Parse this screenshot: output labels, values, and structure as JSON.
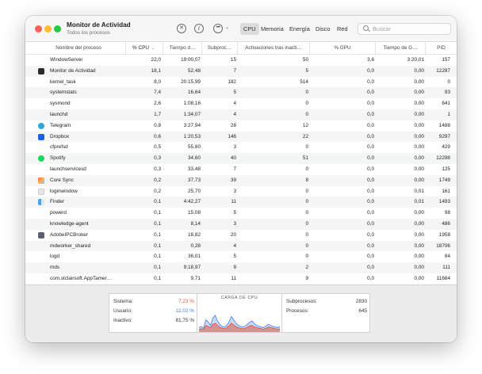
{
  "window": {
    "title": "Monitor de Actividad",
    "subtitle": "Todos los procesos"
  },
  "toolbar": {
    "stop_icon": "x-circle-icon",
    "info_icon": "info-icon",
    "more_icon": "ellipsis-icon",
    "tabs": [
      {
        "label": "CPU",
        "active": true
      },
      {
        "label": "Memoria",
        "active": false
      },
      {
        "label": "Energía",
        "active": false
      },
      {
        "label": "Disco",
        "active": false
      },
      {
        "label": "Red",
        "active": false
      }
    ],
    "search_placeholder": "Buscar"
  },
  "columns": {
    "name": "Nombre del proceso",
    "cpu": "% CPU",
    "cpu_time": "Tiempo d…",
    "threads": "Subproc…",
    "wakeups": "Activaciones tras inacti…",
    "gpu": "% GPU",
    "gpu_time": "Tiempo de G…",
    "pid": "PID"
  },
  "processes": [
    {
      "name": "WindowServer",
      "icon": "none",
      "cpu": "22,0",
      "time": "19:00,07",
      "threads": "15",
      "wake": "50",
      "gpu": "3,6",
      "gtime": "3:20,01",
      "pid": "157"
    },
    {
      "name": "Monitor de Actividad",
      "icon": "activity-monitor-icon",
      "cpu": "18,1",
      "time": "52,48",
      "threads": "7",
      "wake": "5",
      "gpu": "0,0",
      "gtime": "0,00",
      "pid": "12287"
    },
    {
      "name": "kernel_task",
      "icon": "none",
      "cpu": "8,0",
      "time": "20:15,99",
      "threads": "182",
      "wake": "514",
      "gpu": "0,0",
      "gtime": "0,00",
      "pid": "0"
    },
    {
      "name": "systemstats",
      "icon": "none",
      "cpu": "7,4",
      "time": "16,64",
      "threads": "5",
      "wake": "0",
      "gpu": "0,0",
      "gtime": "0,00",
      "pid": "93"
    },
    {
      "name": "sysmond",
      "icon": "none",
      "cpu": "2,6",
      "time": "1:08,16",
      "threads": "4",
      "wake": "0",
      "gpu": "0,0",
      "gtime": "0,00",
      "pid": "641"
    },
    {
      "name": "launchd",
      "icon": "none",
      "cpu": "1,7",
      "time": "1:34,07",
      "threads": "4",
      "wake": "0",
      "gpu": "0,0",
      "gtime": "0,00",
      "pid": "1"
    },
    {
      "name": "Telegram",
      "icon": "telegram-icon",
      "cpu": "0,8",
      "time": "3:27,94",
      "threads": "28",
      "wake": "12",
      "gpu": "0,0",
      "gtime": "0,00",
      "pid": "1488"
    },
    {
      "name": "Dropbox",
      "icon": "dropbox-icon",
      "cpu": "0,6",
      "time": "1:20,53",
      "threads": "146",
      "wake": "22",
      "gpu": "0,0",
      "gtime": "0,00",
      "pid": "9297"
    },
    {
      "name": "cfprefsd",
      "icon": "none",
      "cpu": "0,5",
      "time": "55,60",
      "threads": "3",
      "wake": "0",
      "gpu": "0,0",
      "gtime": "0,00",
      "pid": "429"
    },
    {
      "name": "Spotify",
      "icon": "spotify-icon",
      "cpu": "0,3",
      "time": "34,60",
      "threads": "40",
      "wake": "51",
      "gpu": "0,0",
      "gtime": "0,00",
      "pid": "12298"
    },
    {
      "name": "launchservicesd",
      "icon": "none",
      "cpu": "0,3",
      "time": "33,48",
      "threads": "7",
      "wake": "0",
      "gpu": "0,0",
      "gtime": "0,00",
      "pid": "125"
    },
    {
      "name": "Core Sync",
      "icon": "core-sync-icon",
      "cpu": "0,2",
      "time": "37,73",
      "threads": "39",
      "wake": "8",
      "gpu": "0,0",
      "gtime": "0,00",
      "pid": "1749"
    },
    {
      "name": "loginwindow",
      "icon": "loginwindow-icon",
      "cpu": "0,2",
      "time": "25,70",
      "threads": "3",
      "wake": "0",
      "gpu": "0,0",
      "gtime": "0,01",
      "pid": "161"
    },
    {
      "name": "Finder",
      "icon": "finder-icon",
      "cpu": "0,1",
      "time": "4:42,27",
      "threads": "11",
      "wake": "0",
      "gpu": "0,0",
      "gtime": "0,01",
      "pid": "1493"
    },
    {
      "name": "powerd",
      "icon": "none",
      "cpu": "0,1",
      "time": "15,08",
      "threads": "5",
      "wake": "0",
      "gpu": "0,0",
      "gtime": "0,00",
      "pid": "98"
    },
    {
      "name": "knowledge-agent",
      "icon": "none",
      "cpu": "0,1",
      "time": "8,14",
      "threads": "3",
      "wake": "0",
      "gpu": "0,0",
      "gtime": "0,00",
      "pid": "486"
    },
    {
      "name": "AdobeIPCBroker",
      "icon": "adobe-ipc-icon",
      "cpu": "0,1",
      "time": "18,82",
      "threads": "20",
      "wake": "0",
      "gpu": "0,0",
      "gtime": "0,00",
      "pid": "1958"
    },
    {
      "name": "mdworker_shared",
      "icon": "none",
      "cpu": "0,1",
      "time": "0,28",
      "threads": "4",
      "wake": "0",
      "gpu": "0,0",
      "gtime": "0,00",
      "pid": "18706"
    },
    {
      "name": "logd",
      "icon": "none",
      "cpu": "0,1",
      "time": "36,01",
      "threads": "5",
      "wake": "0",
      "gpu": "0,0",
      "gtime": "0,00",
      "pid": "84"
    },
    {
      "name": "mds",
      "icon": "none",
      "cpu": "0,1",
      "time": "9:18,97",
      "threads": "9",
      "wake": "2",
      "gpu": "0,0",
      "gtime": "0,00",
      "pid": "111"
    },
    {
      "name": "com.stclairsoft.AppTamer…",
      "icon": "none",
      "cpu": "0,1",
      "time": "9,71",
      "threads": "11",
      "wake": "9",
      "gpu": "0,0",
      "gtime": "0,00",
      "pid": "11684"
    }
  ],
  "summary": {
    "system_label": "Sistema:",
    "system_value": "7,23 %",
    "user_label": "Usuario:",
    "user_value": "11,02 %",
    "idle_label": "Inactivo:",
    "idle_value": "81,75 %",
    "graph_title": "CARGA DE CPU",
    "threads_label": "Subprocesos:",
    "threads_value": "2830",
    "processes_label": "Procesos:",
    "processes_value": "645"
  },
  "colors": {
    "system": "#e0533f",
    "user": "#3f7ee8"
  },
  "cpu_load": {
    "user": [
      8,
      10,
      7,
      22,
      18,
      12,
      25,
      30,
      20,
      14,
      10,
      9,
      12,
      18,
      28,
      22,
      16,
      12,
      10,
      9,
      11,
      14,
      18,
      20,
      15,
      12,
      10,
      9,
      8,
      11,
      14,
      12,
      10,
      9,
      8,
      10
    ],
    "system": [
      5,
      6,
      5,
      12,
      10,
      8,
      14,
      16,
      12,
      9,
      7,
      6,
      8,
      11,
      16,
      13,
      10,
      8,
      7,
      6,
      7,
      9,
      11,
      12,
      9,
      8,
      7,
      6,
      5,
      7,
      9,
      8,
      7,
      6,
      5,
      6
    ]
  }
}
